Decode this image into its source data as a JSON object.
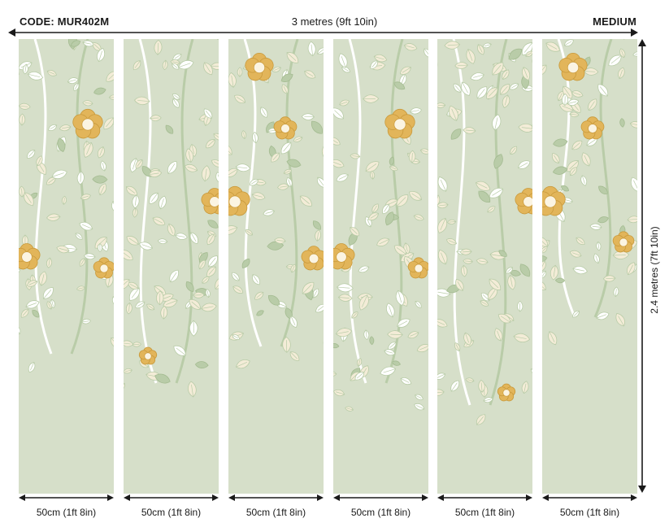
{
  "header": {
    "code": "CODE: MUR402M",
    "width": "3 metres (9ft 10in)",
    "size": "MEDIUM"
  },
  "side": {
    "height": "2.4 metres (7ft 10in)"
  },
  "panels": [
    {
      "width": "50cm (1ft 8in)"
    },
    {
      "width": "50cm (1ft 8in)"
    },
    {
      "width": "50cm (1ft 8in)"
    },
    {
      "width": "50cm (1ft 8in)"
    },
    {
      "width": "50cm (1ft 8in)"
    },
    {
      "width": "50cm (1ft 8in)"
    }
  ],
  "colors": {
    "background": "#d6dfc9",
    "leaf_cream": "#f3ecd7",
    "leaf_white": "#ffffff",
    "leaf_green": "#b9cca8",
    "flower_gold": "#e2b55a",
    "flower_center": "#fbf4e2",
    "arrow": "#1a1a1a"
  },
  "icons": {
    "leaf": "leaf-icon",
    "flower": "flower-icon"
  }
}
